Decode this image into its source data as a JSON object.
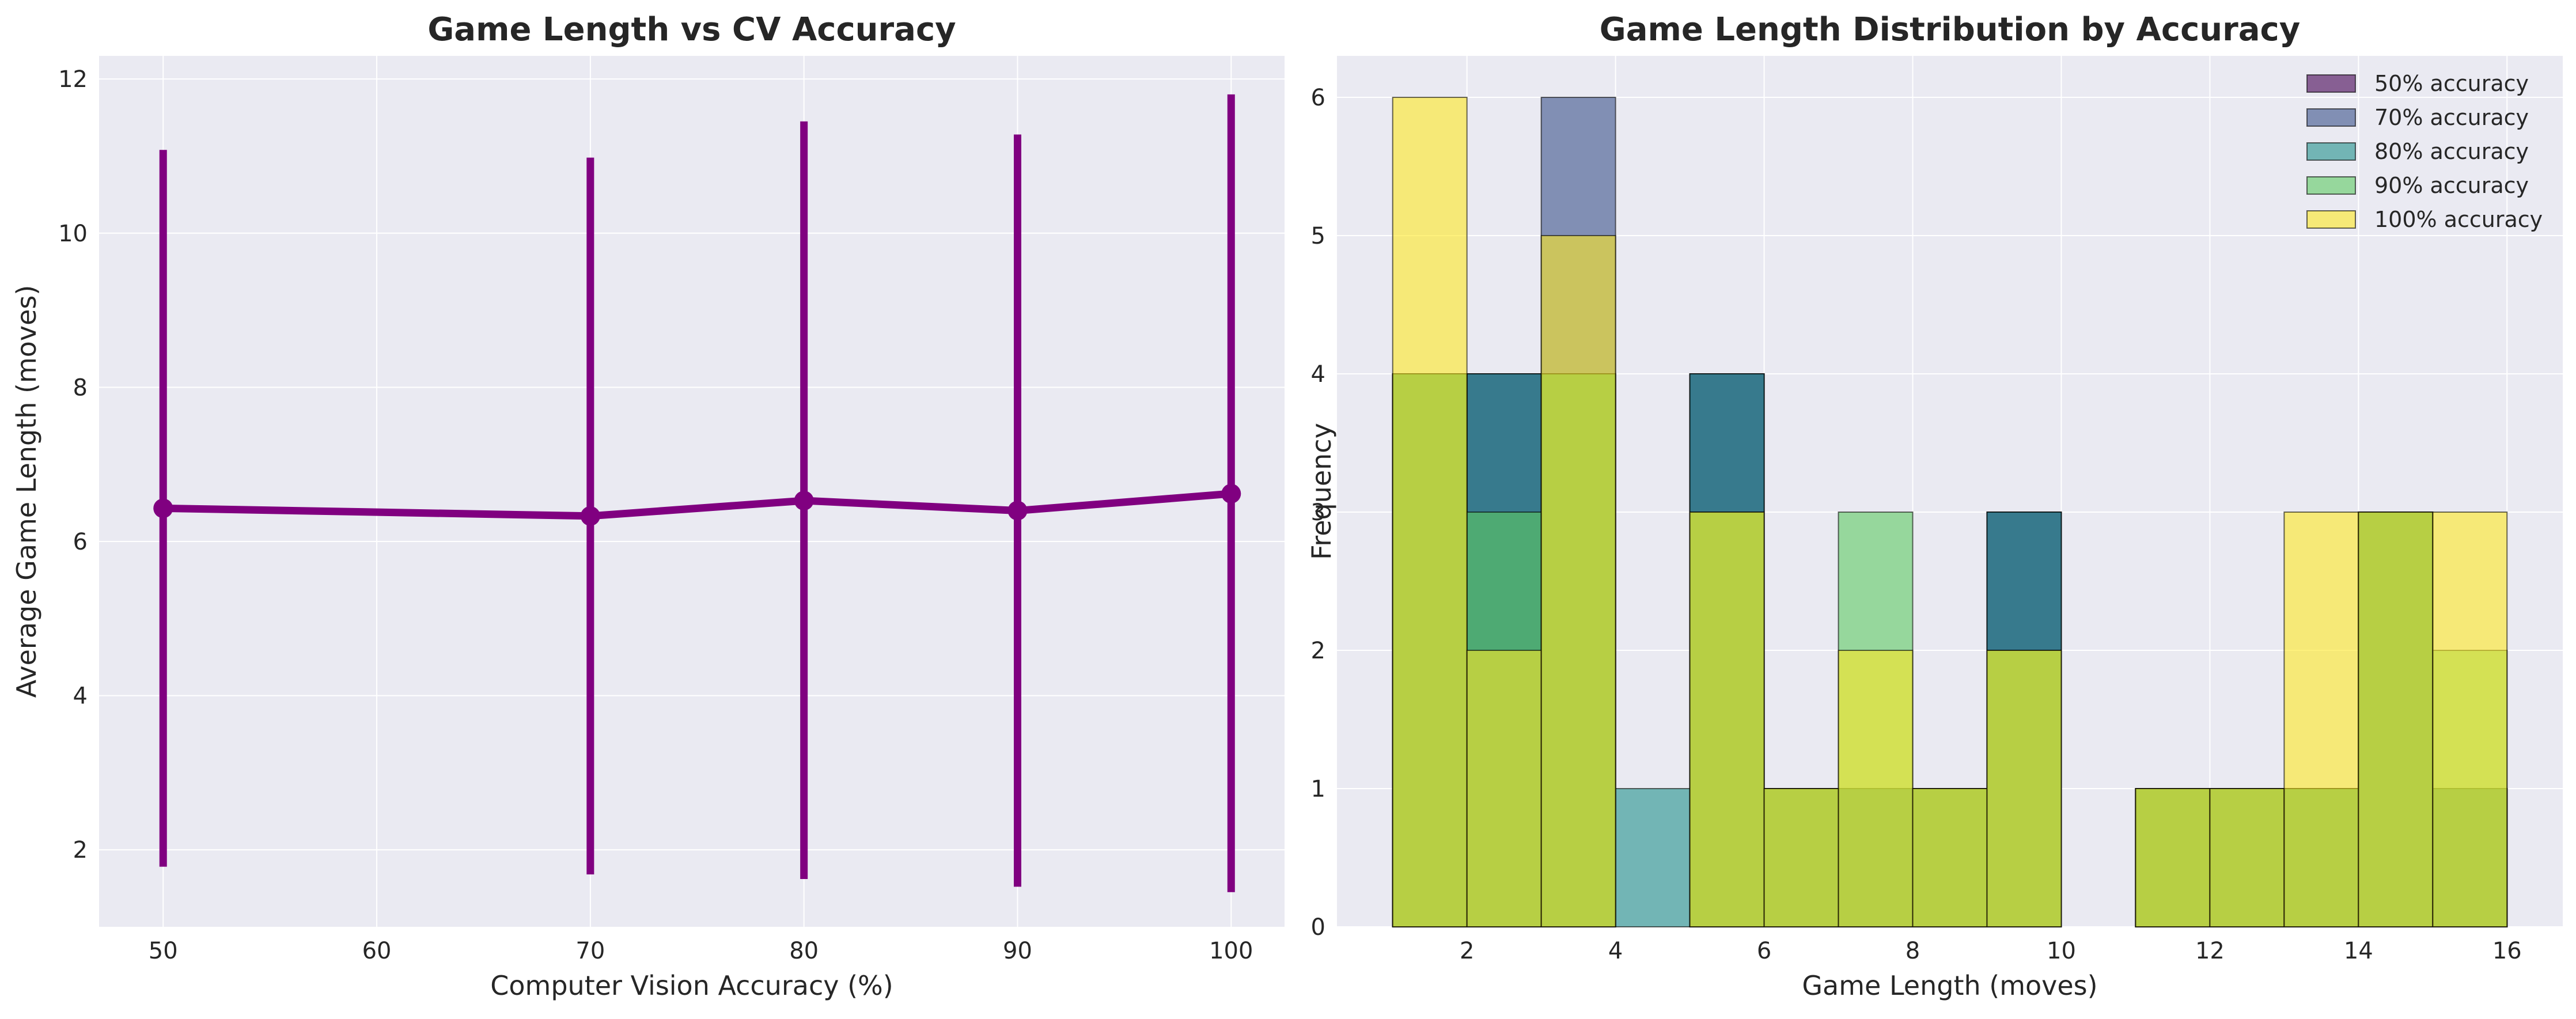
{
  "colors": {
    "background": "#eaeaf2",
    "grid": "#ffffff",
    "line": "#800080",
    "series": [
      "#440154",
      "#3b528b",
      "#21918c",
      "#5ec962",
      "#fde725"
    ]
  },
  "chart_data": [
    {
      "type": "line",
      "title": "Game Length vs CV Accuracy",
      "xlabel": "Computer Vision Accuracy (%)",
      "ylabel": "Average Game Length (moves)",
      "xlim": [
        47,
        102.5
      ],
      "ylim": [
        1.0,
        12.3
      ],
      "xticks": [
        50,
        60,
        70,
        80,
        90,
        100
      ],
      "yticks": [
        2,
        4,
        6,
        8,
        10,
        12
      ],
      "grid": true,
      "x": [
        50,
        70,
        80,
        90,
        100
      ],
      "y": [
        6.43,
        6.33,
        6.53,
        6.4,
        6.62
      ],
      "error_low": [
        1.78,
        1.68,
        1.62,
        1.52,
        1.45
      ],
      "error_high": [
        11.08,
        10.98,
        11.45,
        11.28,
        11.8
      ]
    },
    {
      "type": "bar",
      "subtype": "overlapping histogram",
      "title": "Game Length Distribution by Accuracy",
      "xlabel": "Game Length (moves)",
      "ylabel": "Frequency",
      "xlim": [
        0.25,
        16.75
      ],
      "ylim": [
        0,
        6.3
      ],
      "xticks": [
        2,
        4,
        6,
        8,
        10,
        12,
        14,
        16
      ],
      "yticks": [
        0,
        1,
        2,
        3,
        4,
        5,
        6
      ],
      "grid": true,
      "legend_position": "top-right",
      "bin_edges": [
        1,
        2,
        3,
        4,
        5,
        6,
        7,
        8,
        9,
        10,
        11,
        12,
        13,
        14,
        15,
        16
      ],
      "series": [
        {
          "name": "50% accuracy",
          "values": [
            4,
            4,
            4,
            0,
            4,
            1,
            1,
            1,
            3,
            0,
            1,
            1,
            1,
            3,
            1
          ]
        },
        {
          "name": "70% accuracy",
          "values": [
            4,
            4,
            6,
            0,
            4,
            1,
            1,
            1,
            3,
            0,
            1,
            1,
            1,
            3,
            1
          ]
        },
        {
          "name": "80% accuracy",
          "values": [
            4,
            4,
            4,
            1,
            4,
            1,
            1,
            1,
            3,
            0,
            1,
            1,
            1,
            3,
            1
          ]
        },
        {
          "name": "90% accuracy",
          "values": [
            4,
            3,
            4,
            0,
            3,
            1,
            3,
            1,
            2,
            0,
            1,
            1,
            1,
            3,
            2
          ]
        },
        {
          "name": "100% accuracy",
          "values": [
            6,
            2,
            5,
            0,
            3,
            1,
            2,
            1,
            2,
            0,
            1,
            1,
            3,
            3,
            3
          ]
        }
      ]
    }
  ]
}
